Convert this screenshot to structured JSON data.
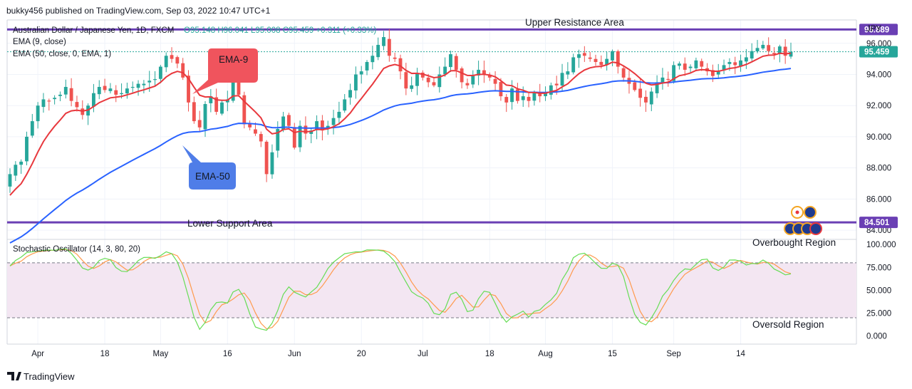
{
  "header": {
    "published": "bukky456 published on TradingView.com, Sep 03, 2022 10:47 UTC+1"
  },
  "legend": {
    "symbol": "Australian Dollar / Japanese Yen, 1D, FXCM",
    "ohlc_text": "O95.148  H96.041  L95.008  C95.459  +0.311 (+0.33%)",
    "ema9_label": "EMA (9, close)",
    "ema50_label": "EMA (50, close, 0, EMA, 1)",
    "stoch_label": "Stochastic Oscillator (14, 3, 80, 20)"
  },
  "annotations": {
    "upper_resistance": "Upper Resistance Area",
    "lower_support": "Lower Support Area",
    "ema9_callout": "EMA-9",
    "ema50_callout": "EMA-50",
    "overbought": "Overbought Region",
    "oversold": "Oversold Region"
  },
  "footer": {
    "brand": "TradingView"
  },
  "colors": {
    "bull": "#26a69a",
    "bear": "#ef5350",
    "ema9": "#e8383d",
    "ema50": "#2962ff",
    "level": "#6a3fb4",
    "stoch_k": "#66dd55",
    "stoch_d": "#ff9a4d",
    "stoch_band": "#f3e6f2",
    "ema9_callout_bg": "#f0545d",
    "ema50_callout_bg": "#4f7de8"
  },
  "chart_data": [
    {
      "type": "candlestick",
      "currency": "JPY",
      "y_axis_ticks": [
        "96.000",
        "94.000",
        "92.000",
        "90.000",
        "88.000",
        "86.000",
        "84.000"
      ],
      "ylim": [
        83.5,
        97.5
      ],
      "x_axis_ticks": [
        "Apr",
        "18",
        "May",
        "16",
        "Jun",
        "20",
        "Jul",
        "18",
        "Aug",
        "15",
        "Sep",
        "14"
      ],
      "price_labels": {
        "resistance": {
          "value": 96.889,
          "label": "96.889"
        },
        "last": {
          "value": 95.459,
          "label": "95.459"
        },
        "support": {
          "value": 84.501,
          "label": "84.501"
        }
      },
      "levels": [
        {
          "name": "Upper Resistance Area",
          "value": 96.889
        },
        {
          "name": "Lower Support Area",
          "value": 84.501
        }
      ],
      "closes": [
        87.6,
        88.2,
        88.4,
        90.0,
        91.0,
        92.0,
        92.4,
        92.3,
        92.5,
        92.7,
        93.2,
        92.3,
        91.9,
        91.4,
        92.0,
        92.8,
        93.2,
        93.0,
        93.1,
        92.7,
        92.8,
        93.1,
        93.2,
        93.4,
        93.4,
        93.6,
        93.7,
        94.5,
        95.2,
        95.0,
        94.7,
        93.8,
        92.2,
        91.0,
        90.6,
        92.1,
        92.6,
        91.6,
        92.2,
        92.4,
        93.7,
        92.7,
        90.8,
        90.6,
        90.2,
        89.7,
        87.6,
        89.0,
        90.5,
        91.3,
        90.7,
        89.3,
        90.7,
        90.2,
        90.4,
        91.0,
        90.4,
        90.7,
        91.2,
        91.6,
        92.4,
        93.0,
        94.0,
        94.2,
        94.8,
        95.2,
        95.9,
        96.4,
        95.2,
        95.0,
        94.2,
        93.1,
        93.3,
        94.1,
        93.8,
        93.5,
        93.3,
        94.0,
        94.5,
        95.3,
        94.3,
        93.5,
        93.3,
        93.9,
        94.3,
        94.0,
        93.8,
        93.4,
        92.6,
        92.2,
        93.1,
        92.3,
        92.6,
        92.3,
        92.8,
        92.6,
        92.8,
        93.3,
        93.3,
        94.1,
        94.2,
        95.1,
        95.3,
        95.2,
        95.0,
        94.8,
        94.6,
        95.0,
        95.5,
        94.5,
        93.8,
        93.4,
        93.0,
        92.5,
        92.2,
        92.9,
        93.5,
        93.8,
        93.7,
        94.6,
        94.7,
        94.3,
        94.5,
        94.9,
        94.5,
        94.2,
        93.9,
        94.2,
        94.6,
        94.8,
        94.6,
        94.9,
        95.1,
        95.5,
        95.7,
        95.9,
        95.5,
        95.3,
        95.8,
        95.2,
        95.5
      ]
    },
    {
      "type": "line",
      "name": "Stochastic Oscillator (14, 3, 80, 20)",
      "y_axis_ticks": [
        "100.000",
        "75.000",
        "50.000",
        "25.000",
        "0.000"
      ],
      "ylim": [
        -8,
        104
      ],
      "bands": [
        80,
        20
      ]
    }
  ]
}
